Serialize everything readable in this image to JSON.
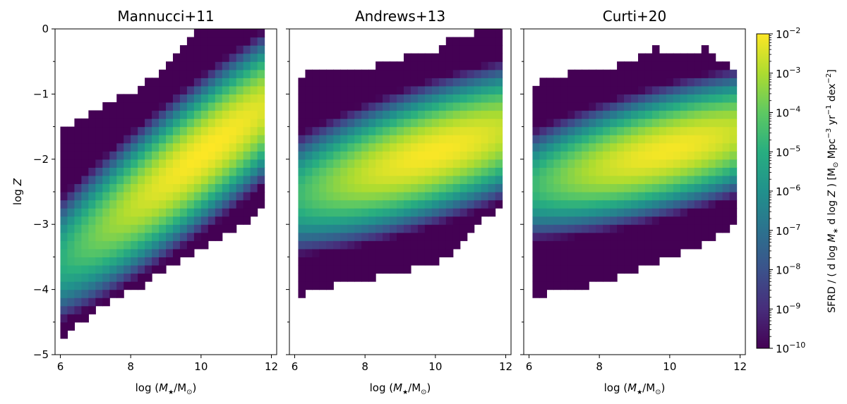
{
  "chart_data": [
    {
      "type": "heatmap",
      "title": "Mannucci+11",
      "xlabel": "log (M★/M⊙)",
      "ylabel": "log Z",
      "xlim": [
        5.85,
        12.15
      ],
      "ylim": [
        -5,
        0
      ],
      "xticks": [
        "6",
        "8",
        "10",
        "12"
      ],
      "yticks": [
        "0",
        "−1",
        "−2",
        "−3",
        "−4",
        "−5"
      ],
      "grid": false,
      "x_range_data": [
        6.0,
        11.8
      ],
      "ridge": {
        "x0": 6.0,
        "z_at_x0": -3.55,
        "slope": 0.405,
        "peak_x": 10.2,
        "peak_log_sfrd": -2.0
      },
      "spread_dex": 0.7,
      "upper_bound": [
        [
          6.0,
          -1.55
        ],
        [
          6.35,
          -1.45
        ],
        [
          6.75,
          -1.3
        ],
        [
          7.1,
          -1.2
        ],
        [
          7.6,
          -1.05
        ],
        [
          8.1,
          -0.95
        ],
        [
          8.6,
          -0.75
        ],
        [
          9.1,
          -0.55
        ],
        [
          9.5,
          -0.3
        ],
        [
          9.85,
          -0.05
        ],
        [
          11.8,
          0.0
        ]
      ],
      "lower_bound": [
        [
          6.0,
          -4.8
        ],
        [
          6.35,
          -4.6
        ],
        [
          7.1,
          -4.3
        ],
        [
          7.7,
          -4.1
        ],
        [
          8.3,
          -3.95
        ],
        [
          9.0,
          -3.7
        ],
        [
          9.6,
          -3.5
        ],
        [
          10.3,
          -3.3
        ],
        [
          10.9,
          -3.1
        ],
        [
          11.4,
          -2.95
        ],
        [
          11.8,
          -2.75
        ]
      ]
    },
    {
      "type": "heatmap",
      "title": "Andrews+13",
      "xlabel": "log (M★/M⊙)",
      "xlim": [
        5.85,
        12.15
      ],
      "ylim": [
        -5,
        0
      ],
      "xticks": [
        "6",
        "8",
        "10",
        "12"
      ],
      "grid": false,
      "x_range_data": [
        6.1,
        11.8
      ],
      "ridge": {
        "x0": 6.1,
        "z_at_x0": -2.55,
        "slope": 0.17,
        "peak_x": 10.0,
        "peak_log_sfrd": -2.05
      },
      "spread_dex": 0.65,
      "upper_bound": [
        [
          6.1,
          -0.7
        ],
        [
          8.0,
          -0.6
        ],
        [
          9.0,
          -0.45
        ],
        [
          10.0,
          -0.35
        ],
        [
          10.6,
          -0.1
        ],
        [
          11.8,
          0.0
        ]
      ],
      "lower_bound": [
        [
          6.1,
          -4.1
        ],
        [
          7.3,
          -3.9
        ],
        [
          8.5,
          -3.8
        ],
        [
          9.5,
          -3.65
        ],
        [
          10.5,
          -3.5
        ],
        [
          11.3,
          -2.95
        ],
        [
          11.8,
          -2.75
        ]
      ]
    },
    {
      "type": "heatmap",
      "title": "Curti+20",
      "xlabel": "log (M★/M⊙)",
      "xlim": [
        5.85,
        12.15
      ],
      "ylim": [
        -5,
        0
      ],
      "xticks": [
        "6",
        "8",
        "10",
        "12"
      ],
      "grid": false,
      "x_range_data": [
        6.1,
        11.8
      ],
      "ridge": {
        "x0": 6.1,
        "z_at_x0": -2.4,
        "slope": 0.14,
        "peak_x": 10.0,
        "peak_log_sfrd": -2.1
      },
      "spread_dex": 0.6,
      "upper_bound": [
        [
          6.1,
          -0.85
        ],
        [
          6.8,
          -0.7
        ],
        [
          8.0,
          -0.65
        ],
        [
          9.0,
          -0.5
        ],
        [
          9.5,
          -0.3
        ],
        [
          10.5,
          -0.35
        ],
        [
          11.0,
          -0.3
        ],
        [
          11.8,
          -0.6
        ]
      ],
      "lower_bound": [
        [
          6.1,
          -4.1
        ],
        [
          7.0,
          -4.0
        ],
        [
          8.0,
          -3.9
        ],
        [
          9.0,
          -3.7
        ],
        [
          10.0,
          -3.5
        ],
        [
          11.0,
          -3.3
        ],
        [
          11.8,
          -3.05
        ]
      ]
    }
  ],
  "colorbar": {
    "colormap": "viridis",
    "scale": "log",
    "range": [
      -10,
      -2
    ],
    "tick_exponents": [
      "−10",
      "−9",
      "−8",
      "−7",
      "−6",
      "−5",
      "−4",
      "−3",
      "−2"
    ],
    "tick_base": "10",
    "label": "SFRD / ( d log M∗ d log Z ) [M⊙ Mpc⁻³ yr⁻¹ dex⁻²]"
  }
}
